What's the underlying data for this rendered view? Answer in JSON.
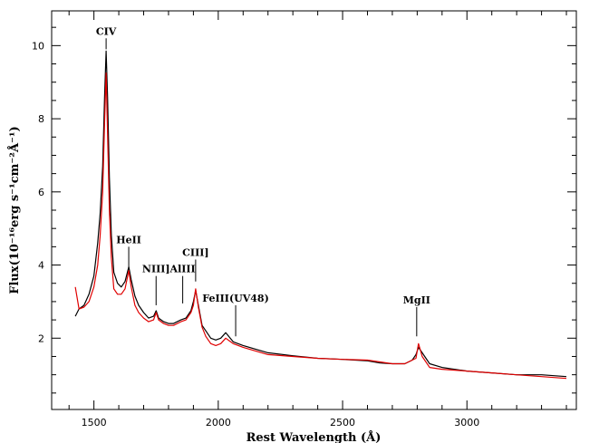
{
  "chart_data": {
    "type": "line",
    "title": "",
    "xlabel": "Rest Wavelength (Å)",
    "ylabel": "Flux(10⁻¹⁶erg s⁻¹cm⁻²Å⁻¹)",
    "xlim": [
      1330,
      3440
    ],
    "ylim": [
      0.05,
      10.95
    ],
    "xticks": [
      1500,
      2000,
      2500,
      3000
    ],
    "yticks": [
      2,
      4,
      6,
      8,
      10
    ],
    "grid": false,
    "colors": {
      "series_black": "#000000",
      "series_red": "#e00000"
    },
    "annotations": [
      {
        "text": "CIV",
        "x": 1549,
        "y_top": 10.2,
        "y_bottom": 9.9
      },
      {
        "text": "HeII",
        "x": 1640,
        "y_top": 4.5,
        "y_bottom": 3.9
      },
      {
        "text": "NIII]",
        "x": 1750,
        "y_top": 3.7,
        "y_bottom": 2.9
      },
      {
        "text": "AlIII",
        "x": 1857,
        "y_top": 3.7,
        "y_bottom": 2.95
      },
      {
        "text": "CIII]",
        "x": 1909,
        "y_top": 4.15,
        "y_bottom": 3.55
      },
      {
        "text": "FeIII(UV48)",
        "x": 2070,
        "y_top": 2.9,
        "y_bottom": 2.05
      },
      {
        "text": "MgII",
        "x": 2798,
        "y_top": 2.85,
        "y_bottom": 2.05
      }
    ],
    "series": [
      {
        "color": "#000000",
        "x": [
          1425,
          1440,
          1460,
          1480,
          1500,
          1515,
          1525,
          1535,
          1543,
          1549,
          1555,
          1562,
          1570,
          1580,
          1595,
          1610,
          1625,
          1640,
          1650,
          1665,
          1680,
          1700,
          1720,
          1740,
          1750,
          1760,
          1780,
          1800,
          1820,
          1850,
          1870,
          1890,
          1900,
          1909,
          1920,
          1935,
          1950,
          1970,
          1990,
          2010,
          2030,
          2060,
          2100,
          2150,
          2200,
          2300,
          2400,
          2500,
          2600,
          2650,
          2700,
          2750,
          2780,
          2795,
          2805,
          2820,
          2850,
          2900,
          3000,
          3100,
          3200,
          3300,
          3400
        ],
        "y": [
          2.6,
          2.8,
          2.9,
          3.2,
          3.7,
          4.6,
          5.4,
          6.7,
          8.6,
          9.85,
          8.6,
          6.4,
          4.8,
          3.8,
          3.5,
          3.4,
          3.55,
          3.95,
          3.6,
          3.15,
          2.9,
          2.7,
          2.55,
          2.6,
          2.75,
          2.55,
          2.45,
          2.4,
          2.4,
          2.5,
          2.55,
          2.75,
          3.0,
          3.3,
          2.9,
          2.35,
          2.2,
          2.0,
          1.95,
          2.0,
          2.15,
          1.9,
          1.8,
          1.7,
          1.6,
          1.52,
          1.45,
          1.42,
          1.38,
          1.32,
          1.3,
          1.3,
          1.4,
          1.55,
          1.75,
          1.6,
          1.3,
          1.2,
          1.1,
          1.05,
          1.0,
          1.0,
          0.95
        ]
      },
      {
        "color": "#e00000",
        "x": [
          1425,
          1440,
          1460,
          1480,
          1500,
          1515,
          1525,
          1535,
          1543,
          1549,
          1555,
          1562,
          1570,
          1580,
          1595,
          1610,
          1625,
          1640,
          1650,
          1665,
          1680,
          1700,
          1720,
          1740,
          1750,
          1760,
          1780,
          1800,
          1820,
          1850,
          1870,
          1890,
          1900,
          1909,
          1920,
          1935,
          1950,
          1970,
          1990,
          2010,
          2030,
          2060,
          2100,
          2150,
          2200,
          2300,
          2400,
          2500,
          2600,
          2650,
          2700,
          2750,
          2780,
          2795,
          2805,
          2820,
          2850,
          2900,
          3000,
          3100,
          3200,
          3300,
          3400
        ],
        "y": [
          3.4,
          2.8,
          2.85,
          3.0,
          3.4,
          4.0,
          4.8,
          6.0,
          7.9,
          9.25,
          7.6,
          5.5,
          4.2,
          3.35,
          3.2,
          3.2,
          3.35,
          3.85,
          3.4,
          2.9,
          2.7,
          2.55,
          2.45,
          2.5,
          2.7,
          2.5,
          2.4,
          2.35,
          2.35,
          2.45,
          2.5,
          2.7,
          2.9,
          3.35,
          2.85,
          2.3,
          2.05,
          1.85,
          1.8,
          1.85,
          2.0,
          1.85,
          1.75,
          1.65,
          1.55,
          1.5,
          1.45,
          1.42,
          1.4,
          1.35,
          1.3,
          1.3,
          1.4,
          1.45,
          1.85,
          1.5,
          1.2,
          1.15,
          1.1,
          1.05,
          1.0,
          0.95,
          0.9
        ]
      }
    ]
  }
}
